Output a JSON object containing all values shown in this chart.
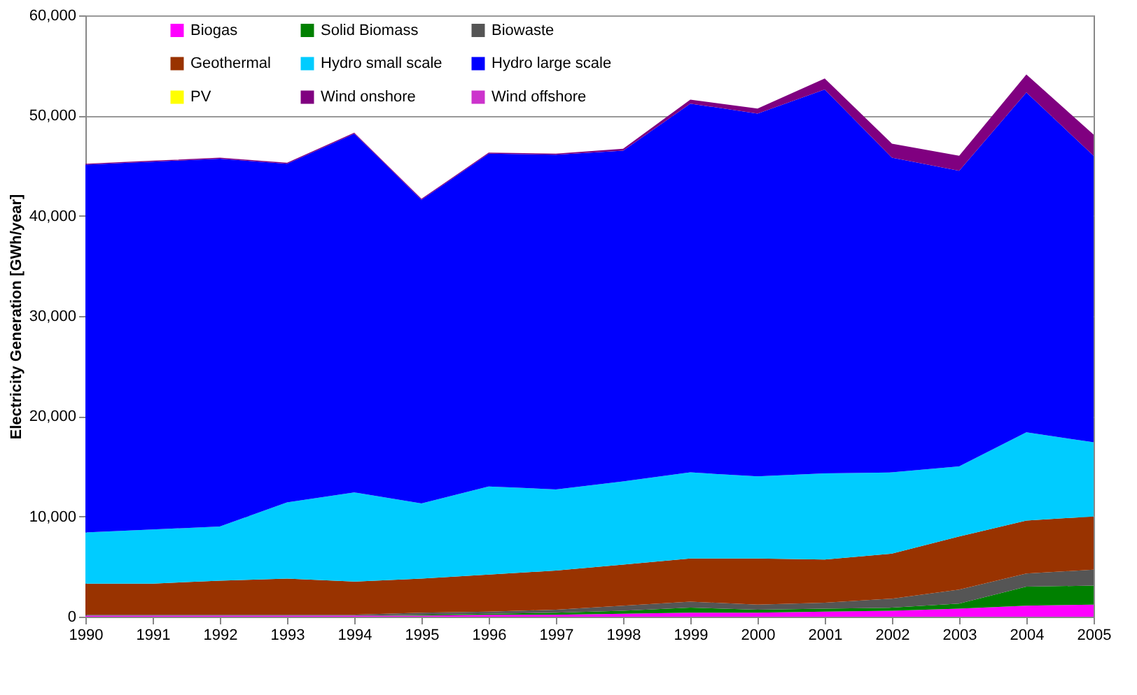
{
  "chart_data": {
    "type": "area",
    "stacked": true,
    "ylabel": "Electricity Generation [GWh/year]",
    "categories": [
      "1990",
      "1991",
      "1992",
      "1993",
      "1994",
      "1995",
      "1996",
      "1997",
      "1998",
      "1999",
      "2000",
      "2001",
      "2002",
      "2003",
      "2004",
      "2005"
    ],
    "ylim": [
      0,
      60000
    ],
    "yticks": [
      {
        "value": 0,
        "label": "0"
      },
      {
        "value": 10000,
        "label": "10,000"
      },
      {
        "value": 20000,
        "label": "20,000"
      },
      {
        "value": 30000,
        "label": "30,000"
      },
      {
        "value": 40000,
        "label": "40,000"
      },
      {
        "value": 50000,
        "label": "50,000"
      },
      {
        "value": 60000,
        "label": "60,000"
      }
    ],
    "grid": "y",
    "legend": "top",
    "series": [
      {
        "name": "Biogas",
        "color": "#ff00ff",
        "values": [
          100,
          100,
          100,
          100,
          100,
          100,
          200,
          200,
          300,
          400,
          400,
          500,
          600,
          800,
          1100,
          1200
        ]
      },
      {
        "name": "Solid Biomass",
        "color": "#008000",
        "values": [
          0,
          0,
          0,
          0,
          0,
          100,
          100,
          200,
          300,
          500,
          300,
          300,
          300,
          500,
          1900,
          1900
        ]
      },
      {
        "name": "Biowaste",
        "color": "#555555",
        "values": [
          100,
          100,
          100,
          100,
          100,
          200,
          200,
          300,
          500,
          600,
          500,
          600,
          900,
          1400,
          1300,
          1600
        ]
      },
      {
        "name": "Geothermal",
        "color": "#993300",
        "values": [
          3100,
          3100,
          3400,
          3600,
          3300,
          3400,
          3700,
          3900,
          4100,
          4300,
          4600,
          4300,
          4500,
          5300,
          5300,
          5300
        ]
      },
      {
        "name": "Hydro small scale",
        "color": "#00ccff",
        "values": [
          5100,
          5400,
          5400,
          7600,
          8900,
          7500,
          8800,
          8100,
          8300,
          8600,
          8200,
          8600,
          8100,
          7000,
          8800,
          7400
        ]
      },
      {
        "name": "Hydro large scale",
        "color": "#0000ff",
        "values": [
          36700,
          36700,
          36700,
          33800,
          35800,
          30300,
          33200,
          33400,
          33000,
          36800,
          36200,
          38300,
          31400,
          29500,
          33900,
          28600
        ]
      },
      {
        "name": "PV",
        "color": "#ffff00",
        "values": [
          null,
          null,
          null,
          null,
          null,
          null,
          null,
          null,
          null,
          null,
          null,
          null,
          null,
          null,
          null,
          null
        ]
      },
      {
        "name": "Wind onshore",
        "color": "#800080",
        "values": [
          100,
          100,
          100,
          100,
          100,
          100,
          100,
          100,
          200,
          400,
          500,
          1100,
          1400,
          1500,
          1800,
          2100
        ]
      },
      {
        "name": "Wind offshore",
        "color": "#cc33cc",
        "values": [
          null,
          null,
          null,
          null,
          null,
          null,
          null,
          null,
          null,
          null,
          null,
          null,
          null,
          null,
          null,
          null
        ]
      }
    ]
  }
}
